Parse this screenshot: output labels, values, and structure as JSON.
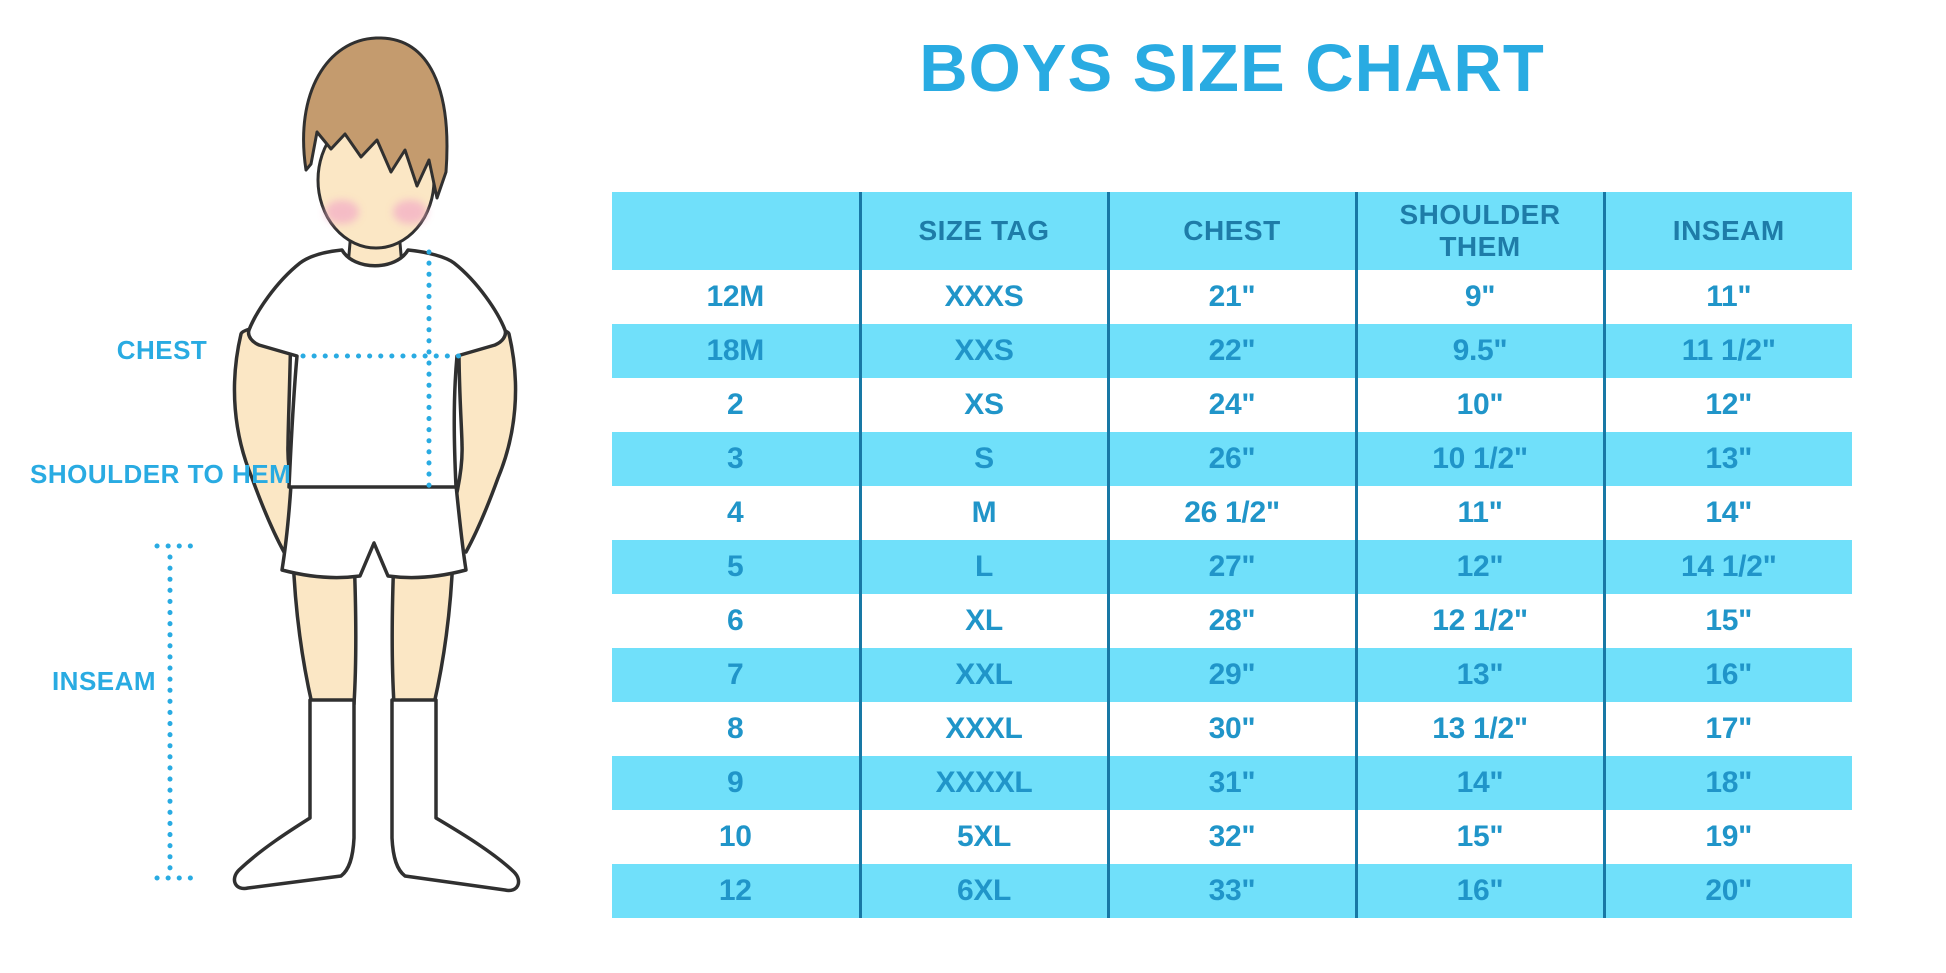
{
  "title": "BOYS SIZE CHART",
  "figure": {
    "labels": {
      "chest": "CHEST",
      "shoulder_to_hem": "SHOULDER TO HEM",
      "inseam": "INSEAM"
    }
  },
  "chart_data": {
    "type": "table",
    "title": "BOYS SIZE CHART",
    "columns": [
      "",
      "SIZE TAG",
      "CHEST",
      "SHOULDER THEM",
      "INSEAM"
    ],
    "rows": [
      [
        "12M",
        "XXXS",
        "21\"",
        "9\"",
        "11\""
      ],
      [
        "18M",
        "XXS",
        "22\"",
        "9.5\"",
        "11 1/2\""
      ],
      [
        "2",
        "XS",
        "24\"",
        "10\"",
        "12\""
      ],
      [
        "3",
        "S",
        "26\"",
        "10 1/2\"",
        "13\""
      ],
      [
        "4",
        "M",
        "26 1/2\"",
        "11\"",
        "14\""
      ],
      [
        "5",
        "L",
        "27\"",
        "12\"",
        "14 1/2\""
      ],
      [
        "6",
        "XL",
        "28\"",
        "12 1/2\"",
        "15\""
      ],
      [
        "7",
        "XXL",
        "29\"",
        "13\"",
        "16\""
      ],
      [
        "8",
        "XXXL",
        "30\"",
        "13 1/2\"",
        "17\""
      ],
      [
        "9",
        "XXXXL",
        "31\"",
        "14\"",
        "18\""
      ],
      [
        "10",
        "5XL",
        "32\"",
        "15\"",
        "19\""
      ],
      [
        "12",
        "6XL",
        "33\"",
        "16\"",
        "20\""
      ]
    ]
  },
  "colors": {
    "accent_blue": "#29ABE2",
    "table_stripe": "#70E0FA",
    "table_divider": "#1878A5",
    "header_text": "#1E7CA8",
    "cell_text": "#2095C9",
    "hair_brown": "#C49B6E",
    "skin": "#FBE7C5",
    "cheek_pink": "#F3AEC6",
    "outline": "#303030"
  }
}
